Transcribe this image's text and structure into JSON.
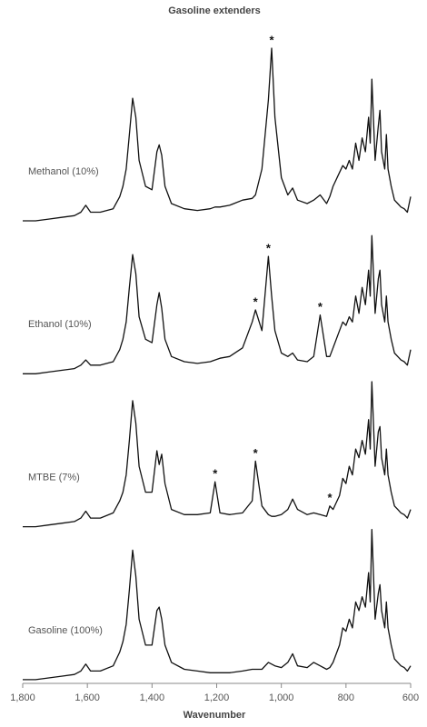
{
  "chart_data": {
    "type": "line",
    "title": "Gasoline extenders",
    "x_label": "Wavenumber",
    "xlim": [
      1800,
      600
    ],
    "xticks": [
      {
        "value": 1800,
        "label": "1,800"
      },
      {
        "value": 1600,
        "label": "1,600"
      },
      {
        "value": 1400,
        "label": "1,400"
      },
      {
        "value": 1200,
        "label": "1,200"
      },
      {
        "value": 1000,
        "label": "1,000"
      },
      800,
      600
    ],
    "ylim": [
      0,
      1
    ],
    "grid": false,
    "x": [
      1800,
      1760,
      1720,
      1680,
      1640,
      1620,
      1605,
      1590,
      1560,
      1520,
      1500,
      1490,
      1480,
      1470,
      1460,
      1450,
      1440,
      1420,
      1400,
      1385,
      1378,
      1370,
      1360,
      1340,
      1300,
      1260,
      1220,
      1205,
      1190,
      1160,
      1120,
      1090,
      1080,
      1060,
      1040,
      1030,
      1020,
      1000,
      980,
      965,
      950,
      920,
      900,
      880,
      860,
      850,
      840,
      820,
      810,
      800,
      790,
      780,
      770,
      760,
      750,
      740,
      730,
      725,
      720,
      710,
      700,
      695,
      690,
      680,
      675,
      670,
      660,
      650,
      640,
      630,
      620,
      610,
      600
    ],
    "series": [
      {
        "name": "Methanol (10%)",
        "color": "#111111",
        "values": [
          0,
          0,
          0.01,
          0.02,
          0.03,
          0.05,
          0.09,
          0.05,
          0.05,
          0.07,
          0.14,
          0.2,
          0.3,
          0.5,
          0.71,
          0.6,
          0.35,
          0.2,
          0.18,
          0.4,
          0.44,
          0.38,
          0.2,
          0.1,
          0.07,
          0.06,
          0.07,
          0.08,
          0.08,
          0.09,
          0.12,
          0.13,
          0.15,
          0.3,
          0.7,
          1.0,
          0.6,
          0.25,
          0.15,
          0.19,
          0.12,
          0.1,
          0.12,
          0.15,
          0.1,
          0.14,
          0.2,
          0.28,
          0.32,
          0.3,
          0.35,
          0.3,
          0.45,
          0.35,
          0.48,
          0.4,
          0.6,
          0.45,
          0.82,
          0.35,
          0.55,
          0.64,
          0.4,
          0.3,
          0.5,
          0.3,
          0.2,
          0.12,
          0.1,
          0.08,
          0.07,
          0.05,
          0.14
        ],
        "annotations": [
          {
            "x": 1030,
            "label": "*"
          }
        ]
      },
      {
        "name": "Ethanol (10%)",
        "color": "#111111",
        "values": [
          0,
          0,
          0.01,
          0.02,
          0.03,
          0.05,
          0.08,
          0.05,
          0.05,
          0.07,
          0.14,
          0.2,
          0.3,
          0.5,
          0.69,
          0.58,
          0.33,
          0.2,
          0.18,
          0.4,
          0.47,
          0.38,
          0.2,
          0.1,
          0.07,
          0.06,
          0.07,
          0.08,
          0.09,
          0.1,
          0.15,
          0.3,
          0.37,
          0.25,
          0.68,
          0.45,
          0.25,
          0.12,
          0.1,
          0.12,
          0.08,
          0.07,
          0.1,
          0.34,
          0.1,
          0.1,
          0.15,
          0.25,
          0.3,
          0.28,
          0.33,
          0.3,
          0.45,
          0.35,
          0.5,
          0.4,
          0.6,
          0.45,
          0.8,
          0.35,
          0.55,
          0.6,
          0.4,
          0.3,
          0.45,
          0.3,
          0.2,
          0.12,
          0.1,
          0.08,
          0.07,
          0.05,
          0.14
        ],
        "annotations": [
          {
            "x": 1080,
            "label": "*"
          },
          {
            "x": 1040,
            "label": "*"
          },
          {
            "x": 880,
            "label": "*"
          }
        ]
      },
      {
        "name": "MTBE (7%)",
        "color": "#111111",
        "values": [
          0,
          0,
          0.01,
          0.02,
          0.03,
          0.05,
          0.09,
          0.05,
          0.05,
          0.08,
          0.15,
          0.2,
          0.3,
          0.5,
          0.73,
          0.6,
          0.35,
          0.2,
          0.2,
          0.44,
          0.36,
          0.42,
          0.25,
          0.1,
          0.07,
          0.07,
          0.08,
          0.26,
          0.08,
          0.07,
          0.08,
          0.15,
          0.38,
          0.12,
          0.07,
          0.06,
          0.06,
          0.07,
          0.1,
          0.16,
          0.1,
          0.07,
          0.08,
          0.07,
          0.06,
          0.12,
          0.1,
          0.18,
          0.28,
          0.25,
          0.35,
          0.3,
          0.45,
          0.4,
          0.5,
          0.42,
          0.62,
          0.45,
          0.84,
          0.35,
          0.55,
          0.58,
          0.4,
          0.3,
          0.45,
          0.3,
          0.2,
          0.12,
          0.1,
          0.08,
          0.07,
          0.05,
          0.1
        ],
        "annotations": [
          {
            "x": 1205,
            "label": "*"
          },
          {
            "x": 1080,
            "label": "*"
          },
          {
            "x": 850,
            "label": "*"
          }
        ]
      },
      {
        "name": "Gasoline (100%)",
        "color": "#111111",
        "values": [
          0,
          0,
          0.01,
          0.02,
          0.03,
          0.05,
          0.09,
          0.05,
          0.05,
          0.08,
          0.16,
          0.22,
          0.32,
          0.52,
          0.75,
          0.6,
          0.35,
          0.2,
          0.2,
          0.4,
          0.42,
          0.35,
          0.2,
          0.1,
          0.06,
          0.05,
          0.04,
          0.04,
          0.04,
          0.04,
          0.05,
          0.06,
          0.06,
          0.06,
          0.1,
          0.09,
          0.08,
          0.07,
          0.1,
          0.15,
          0.08,
          0.07,
          0.1,
          0.08,
          0.06,
          0.07,
          0.1,
          0.2,
          0.3,
          0.28,
          0.35,
          0.3,
          0.45,
          0.4,
          0.48,
          0.42,
          0.62,
          0.45,
          0.87,
          0.35,
          0.5,
          0.55,
          0.4,
          0.3,
          0.45,
          0.3,
          0.2,
          0.12,
          0.1,
          0.08,
          0.07,
          0.05,
          0.08
        ]
      }
    ]
  }
}
